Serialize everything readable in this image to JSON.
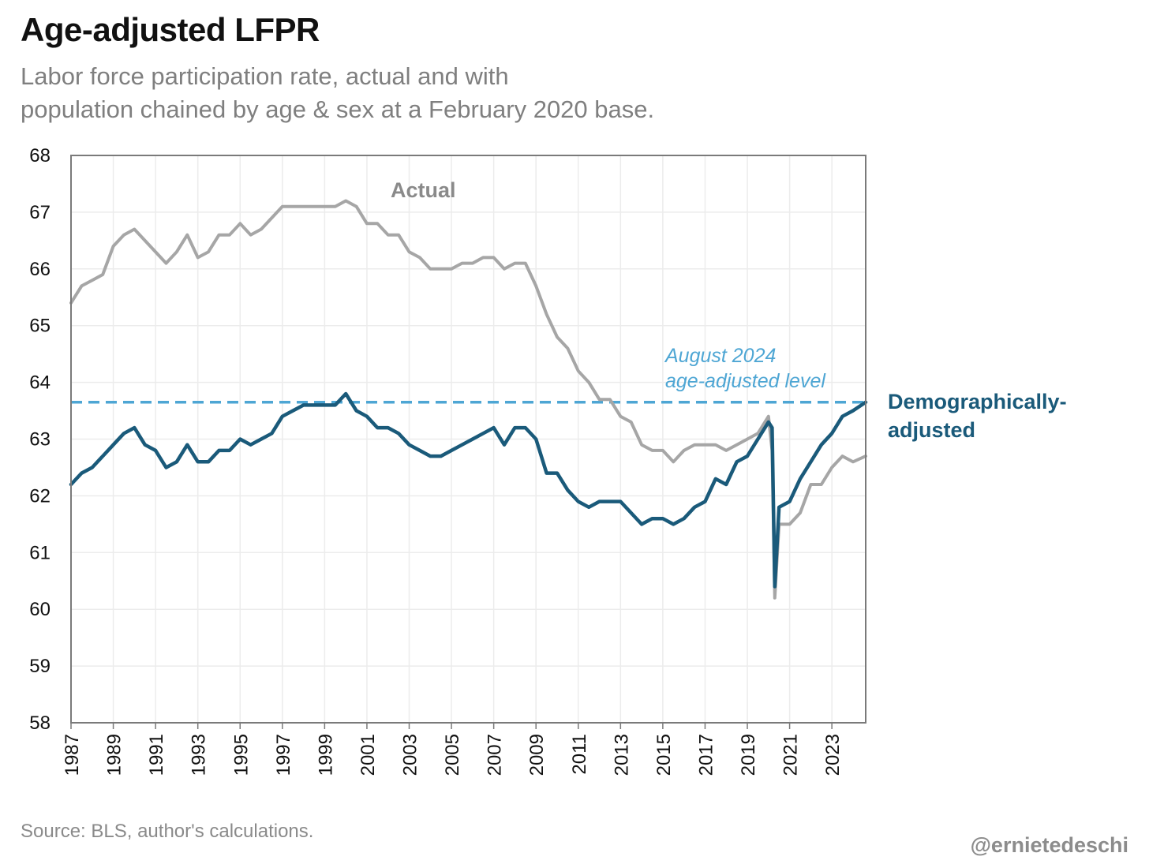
{
  "header": {
    "title": "Age-adjusted LFPR",
    "subtitle_line1": "Labor force participation rate, actual and with",
    "subtitle_line2": "population chained by age & sex at a February 2020 base."
  },
  "footer": {
    "source": "Source: BLS, author's calculations.",
    "handle": "@ernietedeschi"
  },
  "chart_data": {
    "type": "line",
    "title": "Age-adjusted LFPR",
    "ylim": [
      58,
      68
    ],
    "xlim": [
      1987.0,
      2024.6
    ],
    "y_ticks": [
      "58",
      "59",
      "60",
      "61",
      "62",
      "63",
      "64",
      "65",
      "66",
      "67",
      "68"
    ],
    "x_ticks": [
      "1987",
      "1989",
      "1991",
      "1993",
      "1995",
      "1997",
      "1999",
      "2001",
      "2003",
      "2005",
      "2007",
      "2009",
      "2011",
      "2013",
      "2015",
      "2017",
      "2019",
      "2021",
      "2023"
    ],
    "grid": true,
    "reference_line": {
      "y": 63.65,
      "label_line1": "August 2024",
      "label_line2": "age-adjusted level",
      "color": "#4ea6d4"
    },
    "series": [
      {
        "name": "Actual",
        "color": "#a6a6a6",
        "points": [
          [
            1987.0,
            65.4
          ],
          [
            1987.5,
            65.7
          ],
          [
            1988.0,
            65.8
          ],
          [
            1988.5,
            65.9
          ],
          [
            1989.0,
            66.4
          ],
          [
            1989.5,
            66.6
          ],
          [
            1990.0,
            66.7
          ],
          [
            1990.5,
            66.5
          ],
          [
            1991.0,
            66.3
          ],
          [
            1991.5,
            66.1
          ],
          [
            1992.0,
            66.3
          ],
          [
            1992.5,
            66.6
          ],
          [
            1993.0,
            66.2
          ],
          [
            1993.5,
            66.3
          ],
          [
            1994.0,
            66.6
          ],
          [
            1994.5,
            66.6
          ],
          [
            1995.0,
            66.8
          ],
          [
            1995.5,
            66.6
          ],
          [
            1996.0,
            66.7
          ],
          [
            1996.5,
            66.9
          ],
          [
            1997.0,
            67.1
          ],
          [
            1997.5,
            67.1
          ],
          [
            1998.0,
            67.1
          ],
          [
            1998.5,
            67.1
          ],
          [
            1999.0,
            67.1
          ],
          [
            1999.5,
            67.1
          ],
          [
            2000.0,
            67.2
          ],
          [
            2000.5,
            67.1
          ],
          [
            2001.0,
            66.8
          ],
          [
            2001.5,
            66.8
          ],
          [
            2002.0,
            66.6
          ],
          [
            2002.5,
            66.6
          ],
          [
            2003.0,
            66.3
          ],
          [
            2003.5,
            66.2
          ],
          [
            2004.0,
            66.0
          ],
          [
            2004.5,
            66.0
          ],
          [
            2005.0,
            66.0
          ],
          [
            2005.5,
            66.1
          ],
          [
            2006.0,
            66.1
          ],
          [
            2006.5,
            66.2
          ],
          [
            2007.0,
            66.2
          ],
          [
            2007.5,
            66.0
          ],
          [
            2008.0,
            66.1
          ],
          [
            2008.5,
            66.1
          ],
          [
            2009.0,
            65.7
          ],
          [
            2009.5,
            65.2
          ],
          [
            2010.0,
            64.8
          ],
          [
            2010.5,
            64.6
          ],
          [
            2011.0,
            64.2
          ],
          [
            2011.5,
            64.0
          ],
          [
            2012.0,
            63.7
          ],
          [
            2012.5,
            63.7
          ],
          [
            2013.0,
            63.4
          ],
          [
            2013.5,
            63.3
          ],
          [
            2014.0,
            62.9
          ],
          [
            2014.5,
            62.8
          ],
          [
            2015.0,
            62.8
          ],
          [
            2015.5,
            62.6
          ],
          [
            2016.0,
            62.8
          ],
          [
            2016.5,
            62.9
          ],
          [
            2017.0,
            62.9
          ],
          [
            2017.5,
            62.9
          ],
          [
            2018.0,
            62.8
          ],
          [
            2018.5,
            62.9
          ],
          [
            2019.0,
            63.0
          ],
          [
            2019.5,
            63.1
          ],
          [
            2020.0,
            63.4
          ],
          [
            2020.17,
            62.8
          ],
          [
            2020.3,
            60.2
          ],
          [
            2020.5,
            61.5
          ],
          [
            2021.0,
            61.5
          ],
          [
            2021.5,
            61.7
          ],
          [
            2022.0,
            62.2
          ],
          [
            2022.5,
            62.2
          ],
          [
            2023.0,
            62.5
          ],
          [
            2023.5,
            62.7
          ],
          [
            2024.0,
            62.6
          ],
          [
            2024.6,
            62.7
          ]
        ]
      },
      {
        "name": "Demographically-adjusted",
        "label_line1": "Demographically-",
        "label_line2": "adjusted",
        "color": "#1a5a7a",
        "points": [
          [
            1987.0,
            62.2
          ],
          [
            1987.5,
            62.4
          ],
          [
            1988.0,
            62.5
          ],
          [
            1988.5,
            62.7
          ],
          [
            1989.0,
            62.9
          ],
          [
            1989.5,
            63.1
          ],
          [
            1990.0,
            63.2
          ],
          [
            1990.5,
            62.9
          ],
          [
            1991.0,
            62.8
          ],
          [
            1991.5,
            62.5
          ],
          [
            1992.0,
            62.6
          ],
          [
            1992.5,
            62.9
          ],
          [
            1993.0,
            62.6
          ],
          [
            1993.5,
            62.6
          ],
          [
            1994.0,
            62.8
          ],
          [
            1994.5,
            62.8
          ],
          [
            1995.0,
            63.0
          ],
          [
            1995.5,
            62.9
          ],
          [
            1996.0,
            63.0
          ],
          [
            1996.5,
            63.1
          ],
          [
            1997.0,
            63.4
          ],
          [
            1997.5,
            63.5
          ],
          [
            1998.0,
            63.6
          ],
          [
            1998.5,
            63.6
          ],
          [
            1999.0,
            63.6
          ],
          [
            1999.5,
            63.6
          ],
          [
            2000.0,
            63.8
          ],
          [
            2000.5,
            63.5
          ],
          [
            2001.0,
            63.4
          ],
          [
            2001.5,
            63.2
          ],
          [
            2002.0,
            63.2
          ],
          [
            2002.5,
            63.1
          ],
          [
            2003.0,
            62.9
          ],
          [
            2003.5,
            62.8
          ],
          [
            2004.0,
            62.7
          ],
          [
            2004.5,
            62.7
          ],
          [
            2005.0,
            62.8
          ],
          [
            2005.5,
            62.9
          ],
          [
            2006.0,
            63.0
          ],
          [
            2006.5,
            63.1
          ],
          [
            2007.0,
            63.2
          ],
          [
            2007.5,
            62.9
          ],
          [
            2008.0,
            63.2
          ],
          [
            2008.5,
            63.2
          ],
          [
            2009.0,
            63.0
          ],
          [
            2009.5,
            62.4
          ],
          [
            2010.0,
            62.4
          ],
          [
            2010.5,
            62.1
          ],
          [
            2011.0,
            61.9
          ],
          [
            2011.5,
            61.8
          ],
          [
            2012.0,
            61.9
          ],
          [
            2012.5,
            61.9
          ],
          [
            2013.0,
            61.9
          ],
          [
            2013.5,
            61.7
          ],
          [
            2014.0,
            61.5
          ],
          [
            2014.5,
            61.6
          ],
          [
            2015.0,
            61.6
          ],
          [
            2015.5,
            61.5
          ],
          [
            2016.0,
            61.6
          ],
          [
            2016.5,
            61.8
          ],
          [
            2017.0,
            61.9
          ],
          [
            2017.5,
            62.3
          ],
          [
            2018.0,
            62.2
          ],
          [
            2018.5,
            62.6
          ],
          [
            2019.0,
            62.7
          ],
          [
            2019.5,
            63.0
          ],
          [
            2020.0,
            63.3
          ],
          [
            2020.17,
            63.2
          ],
          [
            2020.3,
            60.4
          ],
          [
            2020.5,
            61.8
          ],
          [
            2021.0,
            61.9
          ],
          [
            2021.5,
            62.3
          ],
          [
            2022.0,
            62.6
          ],
          [
            2022.5,
            62.9
          ],
          [
            2023.0,
            63.1
          ],
          [
            2023.5,
            63.4
          ],
          [
            2024.0,
            63.5
          ],
          [
            2024.6,
            63.65
          ]
        ]
      }
    ]
  }
}
